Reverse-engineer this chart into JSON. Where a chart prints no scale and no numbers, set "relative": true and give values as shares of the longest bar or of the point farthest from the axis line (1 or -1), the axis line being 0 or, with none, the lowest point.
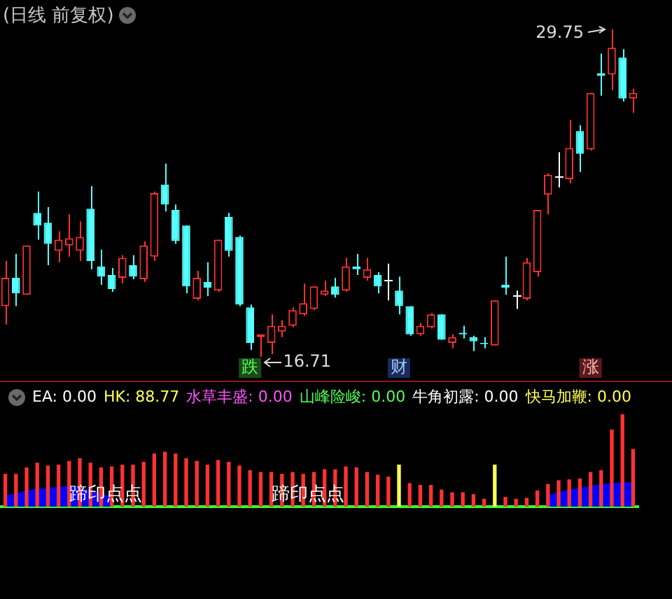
{
  "chart_data": [
    {
      "type": "candlestick",
      "title": "(日线 前复权)",
      "tick_labels": false,
      "categories": [
        null,
        null,
        null,
        null,
        null,
        null,
        null,
        null,
        null,
        null,
        null,
        null,
        null,
        null,
        null,
        null,
        null,
        null,
        null,
        null,
        null,
        null,
        null,
        null,
        null,
        null,
        null,
        null,
        null,
        null,
        null,
        null,
        null,
        null,
        null,
        null,
        null,
        null,
        null,
        null,
        null,
        null,
        null,
        null,
        null,
        null,
        null,
        null,
        null,
        null,
        null,
        null,
        null,
        null,
        null,
        null,
        null,
        null,
        null,
        null
      ],
      "ohlc": [
        [
          18.73,
          20.53,
          18.0,
          19.86
        ],
        [
          19.86,
          20.81,
          18.73,
          19.24
        ],
        [
          19.18,
          21.15,
          19.18,
          21.15
        ],
        [
          22.44,
          23.29,
          21.38,
          21.94
        ],
        [
          22.05,
          22.67,
          20.36,
          21.21
        ],
        [
          20.93,
          21.71,
          20.48,
          21.38
        ],
        [
          21.15,
          22.39,
          20.7,
          21.43
        ],
        [
          20.93,
          22.11,
          20.53,
          21.49
        ],
        [
          22.61,
          23.51,
          20.2,
          20.53
        ],
        [
          20.31,
          20.98,
          19.58,
          19.91
        ],
        [
          19.97,
          20.25,
          19.3,
          19.41
        ],
        [
          19.86,
          20.76,
          19.63,
          20.65
        ],
        [
          20.36,
          20.76,
          19.8,
          19.91
        ],
        [
          19.8,
          21.32,
          19.69,
          21.15
        ],
        [
          20.7,
          23.29,
          20.53,
          23.23
        ],
        [
          23.57,
          24.41,
          22.5,
          22.78
        ],
        [
          22.56,
          22.78,
          21.21,
          21.32
        ],
        [
          21.94,
          21.94,
          19.24,
          19.52
        ],
        [
          19.02,
          20.14,
          18.96,
          19.86
        ],
        [
          19.69,
          20.48,
          19.13,
          19.47
        ],
        [
          19.35,
          21.38,
          19.3,
          21.38
        ],
        [
          22.28,
          22.44,
          20.7,
          20.93
        ],
        [
          21.49,
          21.54,
          18.73,
          18.79
        ],
        [
          18.68,
          18.79,
          16.99,
          17.27
        ],
        [
          17.5,
          17.61,
          16.71,
          17.61
        ],
        [
          17.27,
          18.4,
          16.82,
          17.95
        ],
        [
          17.72,
          18.17,
          17.5,
          17.95
        ],
        [
          17.95,
          18.68,
          17.89,
          18.57
        ],
        [
          18.4,
          19.63,
          18.34,
          18.85
        ],
        [
          18.62,
          19.52,
          18.57,
          19.52
        ],
        [
          19.18,
          19.75,
          19.13,
          19.35
        ],
        [
          19.52,
          19.86,
          19.07,
          19.18
        ],
        [
          19.35,
          20.65,
          19.3,
          20.31
        ],
        [
          20.31,
          20.81,
          19.97,
          20.2
        ],
        [
          19.86,
          20.65,
          19.75,
          20.2
        ],
        [
          19.97,
          20.08,
          19.24,
          19.52
        ],
        [
          19.8,
          20.42,
          18.96,
          19.8
        ],
        [
          19.35,
          19.91,
          18.4,
          18.73
        ],
        [
          18.73,
          18.73,
          17.55,
          17.61
        ],
        [
          17.61,
          18.06,
          17.55,
          17.95
        ],
        [
          17.89,
          18.45,
          17.84,
          18.4
        ],
        [
          18.4,
          18.4,
          17.39,
          17.39
        ],
        [
          17.27,
          17.61,
          17.05,
          17.5
        ],
        [
          17.67,
          17.95,
          17.44,
          17.61
        ],
        [
          17.5,
          17.55,
          16.94,
          17.33
        ],
        [
          17.27,
          17.5,
          17.05,
          17.22
        ],
        [
          17.16,
          18.96,
          17.16,
          18.96
        ],
        [
          19.58,
          20.7,
          19.18,
          19.47
        ],
        [
          19.18,
          19.35,
          18.62,
          19.18
        ],
        [
          19.02,
          20.65,
          18.96,
          20.48
        ],
        [
          20.08,
          22.56,
          19.91,
          22.56
        ],
        [
          23.17,
          24.02,
          22.39,
          23.96
        ],
        [
          23.91,
          24.86,
          23.46,
          23.91
        ],
        [
          23.79,
          26.15,
          23.62,
          25.03
        ],
        [
          25.7,
          25.93,
          24.07,
          24.8
        ],
        [
          24.97,
          27.22,
          24.92,
          27.22
        ],
        [
          28.01,
          28.79,
          27.11,
          27.9
        ],
        [
          27.95,
          29.75,
          27.33,
          29.02
        ],
        [
          28.63,
          28.96,
          26.88,
          27.0
        ],
        [
          27.0,
          27.39,
          26.43,
          27.22
        ]
      ],
      "annotations": [
        "29.75",
        "16.71",
        "跌",
        "财",
        "涨"
      ]
    },
    {
      "type": "bar",
      "relative": true,
      "tick_labels": false,
      "categories": [
        null,
        null,
        null,
        null,
        null,
        null,
        null,
        null,
        null,
        null,
        null,
        null,
        null,
        null,
        null,
        null,
        null,
        null,
        null,
        null,
        null,
        null,
        null,
        null,
        null,
        null,
        null,
        null,
        null,
        null,
        null,
        null,
        null,
        null,
        null,
        null,
        null,
        null,
        null,
        null,
        null,
        null,
        null,
        null,
        null,
        null,
        null,
        null,
        null,
        null,
        null,
        null,
        null,
        null,
        null,
        null,
        null,
        null,
        null,
        null
      ],
      "series": [
        {
          "color": "#ff3232",
          "values": [
            0.35,
            0.35,
            0.42,
            0.47,
            0.44,
            0.45,
            0.49,
            0.52,
            0.47,
            0.42,
            0.43,
            0.45,
            0.45,
            0.48,
            0.57,
            0.59,
            0.57,
            0.52,
            0.49,
            0.45,
            0.5,
            0.48,
            0.44,
            0.39,
            0.37,
            0.37,
            0.35,
            0.37,
            0.35,
            0.37,
            0.4,
            0.4,
            0.43,
            0.42,
            0.37,
            0.34,
            0.32,
            null,
            0.25,
            0.23,
            0.23,
            0.18,
            0.15,
            0.15,
            0.13,
            0.08,
            null,
            0.1,
            0.08,
            0.09,
            0.17,
            0.24,
            0.28,
            0.29,
            0.3,
            0.37,
            0.39,
            0.83,
            1,
            0.62
          ]
        },
        {
          "color": "#ffff54",
          "values": [
            null,
            null,
            null,
            null,
            null,
            null,
            null,
            null,
            null,
            null,
            null,
            null,
            null,
            null,
            null,
            null,
            null,
            null,
            null,
            null,
            null,
            null,
            null,
            null,
            null,
            null,
            null,
            null,
            null,
            null,
            null,
            null,
            null,
            null,
            null,
            null,
            null,
            0.45,
            null,
            null,
            null,
            null,
            null,
            null,
            null,
            null,
            0.45,
            null,
            null,
            null,
            null,
            null,
            null,
            null,
            null,
            null,
            null,
            null,
            null,
            null
          ]
        },
        {
          "type": "area",
          "color": "#0000ff",
          "values": [
            0.1,
            0.12,
            0.15,
            0.17,
            0.18,
            0.19,
            0.2,
            0.18,
            0.15,
            0.12,
            0.08,
            null,
            null,
            null,
            null,
            null,
            null,
            null,
            null,
            null,
            null,
            null,
            null,
            null,
            null,
            null,
            null,
            null,
            null,
            null,
            null,
            null,
            null,
            null,
            null,
            null,
            null,
            null,
            null,
            null,
            null,
            null,
            null,
            null,
            null,
            null,
            null,
            null,
            null,
            null,
            null,
            0.1,
            0.13,
            0.16,
            0.18,
            0.2,
            0.22,
            0.23,
            0.24,
            0.24
          ]
        }
      ],
      "annotations": [
        "EA: 0.00",
        "HK: 88.77",
        "水草丰盛: 0.00",
        "山峰险峻: 0.00",
        "牛角初露: 0.00",
        "快马加鞭: 0.00",
        "蹄印点点",
        "蹄印点点"
      ]
    }
  ]
}
